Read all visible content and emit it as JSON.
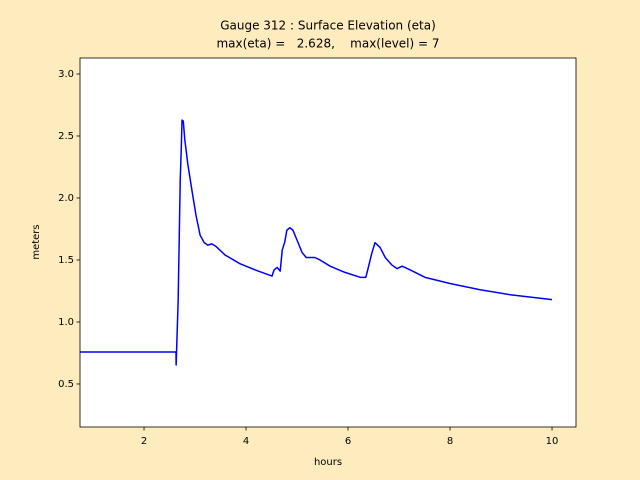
{
  "chart_data": {
    "type": "line",
    "title": "Gauge 312 : Surface Elevation (eta)",
    "subtitle": "max(eta) =   2.628,    max(level) = 7",
    "x_label": "hours",
    "y_label": "meters",
    "color": "#0000ff",
    "x": [
      0.745,
      2.627,
      2.63,
      2.67,
      2.71,
      2.73,
      2.745,
      2.77,
      2.8,
      2.86,
      2.94,
      3.02,
      3.1,
      3.18,
      3.25,
      3.33,
      3.41,
      3.59,
      3.88,
      4.18,
      4.51,
      4.55,
      4.61,
      4.67,
      4.71,
      4.76,
      4.8,
      4.86,
      4.92,
      5.0,
      5.1,
      5.18,
      5.25,
      5.35,
      5.45,
      5.65,
      5.94,
      6.24,
      6.35,
      6.41,
      6.47,
      6.53,
      6.63,
      6.73,
      6.86,
      6.96,
      7.06,
      7.22,
      7.51,
      8.0,
      8.59,
      9.18,
      10.0
    ],
    "values": [
      0.758,
      0.758,
      0.653,
      1.18,
      2.145,
      2.39,
      2.628,
      2.62,
      2.47,
      2.27,
      2.06,
      1.86,
      1.7,
      1.64,
      1.62,
      1.63,
      1.61,
      1.54,
      1.47,
      1.42,
      1.37,
      1.42,
      1.44,
      1.41,
      1.58,
      1.645,
      1.74,
      1.76,
      1.74,
      1.66,
      1.56,
      1.52,
      1.52,
      1.52,
      1.5,
      1.45,
      1.4,
      1.36,
      1.36,
      1.46,
      1.56,
      1.64,
      1.6,
      1.52,
      1.46,
      1.43,
      1.45,
      1.42,
      1.36,
      1.31,
      1.26,
      1.22,
      1.18
    ],
    "xlim": [
      0.745,
      10.47
    ],
    "ylim": [
      0.153,
      3.129
    ],
    "xticks": [
      2,
      4,
      6,
      8,
      10
    ],
    "yticks": [
      0.5,
      {
        "value": 1.0,
        "label": "1.0"
      },
      1.5,
      {
        "value": 2.0,
        "label": "2.0"
      },
      2.5,
      {
        "value": 3.0,
        "label": "3.0"
      }
    ],
    "grid": false
  }
}
